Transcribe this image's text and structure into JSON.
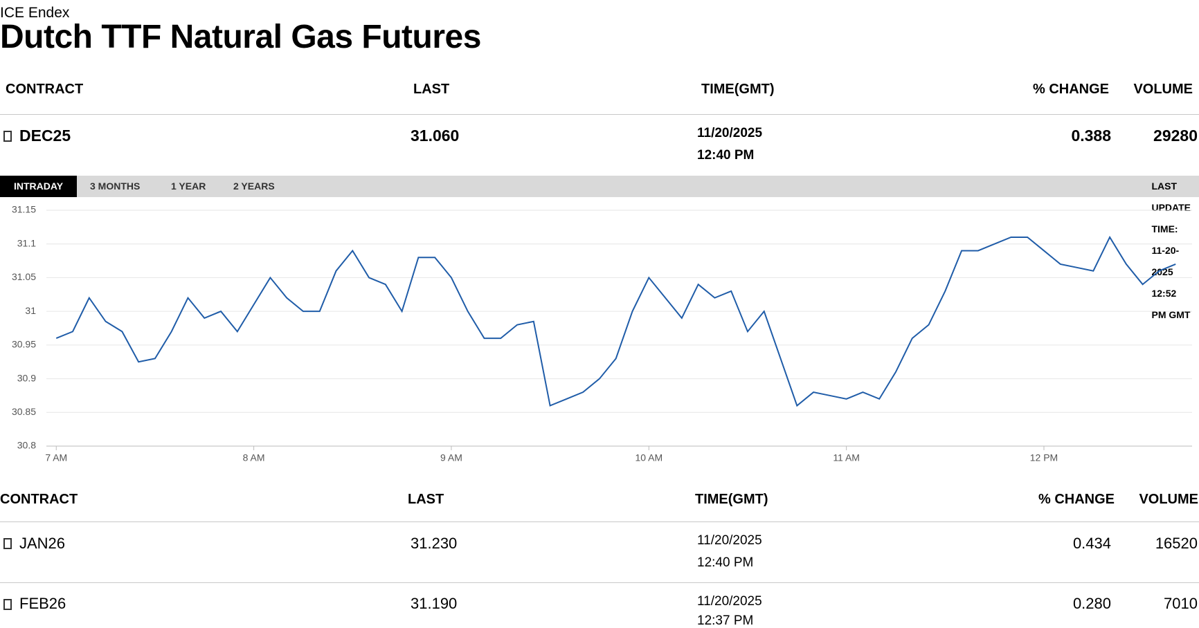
{
  "header": {
    "source": "ICE Endex",
    "title": "Dutch TTF Natural Gas Futures"
  },
  "summary_table": {
    "columns": [
      "CONTRACT",
      "LAST",
      "TIME(GMT)",
      "% CHANGE",
      "VOLUME"
    ],
    "rows": [
      {
        "contract": "DEC25",
        "last": "31.060",
        "date": "11/20/2025",
        "time": "12:40 PM",
        "change": "0.388",
        "volume": "29280"
      }
    ]
  },
  "tabs": {
    "items": [
      "INTRADAY",
      "3 MONTHS",
      "1 YEAR",
      "2 YEARS"
    ],
    "last_update": "LAST UPDATE TIME: 11-20-2025 12:52 PM GMT"
  },
  "chart_data": {
    "type": "line",
    "color": "#1f5ca8",
    "grid": true,
    "x": [
      420,
      425,
      430,
      435,
      440,
      445,
      450,
      455,
      460,
      465,
      470,
      475,
      480,
      485,
      490,
      495,
      500,
      505,
      510,
      515,
      520,
      525,
      530,
      535,
      540,
      545,
      550,
      555,
      560,
      565,
      570,
      575,
      580,
      585,
      590,
      595,
      600,
      605,
      610,
      615,
      620,
      625,
      630,
      635,
      640,
      645,
      650,
      655,
      660,
      665,
      670,
      675,
      680,
      685,
      690,
      695,
      700,
      705,
      710,
      715,
      720,
      725,
      730,
      735,
      740,
      745,
      750,
      755,
      760
    ],
    "values": [
      30.96,
      30.97,
      31.02,
      30.985,
      30.97,
      30.925,
      30.93,
      30.97,
      31.02,
      30.99,
      31,
      30.97,
      31.01,
      31.05,
      31.02,
      31,
      31,
      31.06,
      31.09,
      31.05,
      31.04,
      31,
      31.08,
      31.08,
      31.05,
      31,
      30.96,
      30.96,
      30.98,
      30.985,
      30.86,
      30.87,
      30.88,
      30.9,
      30.93,
      31,
      31.05,
      31.02,
      30.99,
      31.04,
      31.02,
      31.03,
      30.97,
      31,
      30.93,
      30.86,
      30.88,
      30.875,
      30.87,
      30.88,
      30.87,
      30.91,
      30.96,
      30.98,
      31.03,
      31.09,
      31.09,
      31.1,
      31.11,
      31.11,
      31.09,
      31.07,
      31.065,
      31.06,
      31.11,
      31.07,
      31.04,
      31.06,
      31.07
    ],
    "xlim": [
      417,
      765
    ],
    "ylim": [
      30.8,
      31.15
    ],
    "xticks": [
      {
        "value": 420,
        "label": "7 AM"
      },
      {
        "value": 480,
        "label": "8 AM"
      },
      {
        "value": 540,
        "label": "9 AM"
      },
      {
        "value": 600,
        "label": "10 AM"
      },
      {
        "value": 660,
        "label": "11 AM"
      },
      {
        "value": 720,
        "label": "12 PM"
      }
    ],
    "yticks": [
      30.8,
      30.85,
      30.9,
      30.95,
      31,
      31.05,
      31.1,
      31.15
    ]
  },
  "contracts_table": {
    "columns": [
      "CONTRACT",
      "LAST",
      "TIME(GMT)",
      "% CHANGE",
      "VOLUME"
    ],
    "rows": [
      {
        "contract": "JAN26",
        "last": "31.230",
        "date": "11/20/2025",
        "time": "12:40 PM",
        "change": "0.434",
        "volume": "16520"
      },
      {
        "contract": "FEB26",
        "last": "31.190",
        "date": "11/20/2025",
        "time": "12:37 PM",
        "change": "0.280",
        "volume": "7010"
      }
    ]
  }
}
